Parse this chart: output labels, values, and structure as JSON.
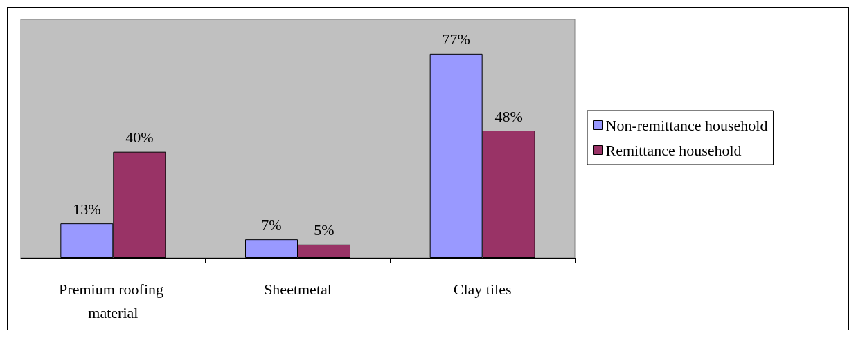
{
  "chart_data": {
    "type": "bar",
    "categories": [
      "Premium roofing material",
      "Sheetmetal",
      "Clay tiles"
    ],
    "series": [
      {
        "name": "Non-remittance household",
        "color": "#9999ff",
        "values": [
          13,
          7,
          77
        ],
        "value_labels": [
          "13%",
          "7%",
          "77%"
        ]
      },
      {
        "name": "Remittance household",
        "color": "#993366",
        "values": [
          40,
          5,
          48
        ],
        "value_labels": [
          "40%",
          "5%",
          "48%"
        ]
      }
    ],
    "ylim": [
      0,
      90
    ],
    "legend": "right",
    "grid": false
  }
}
